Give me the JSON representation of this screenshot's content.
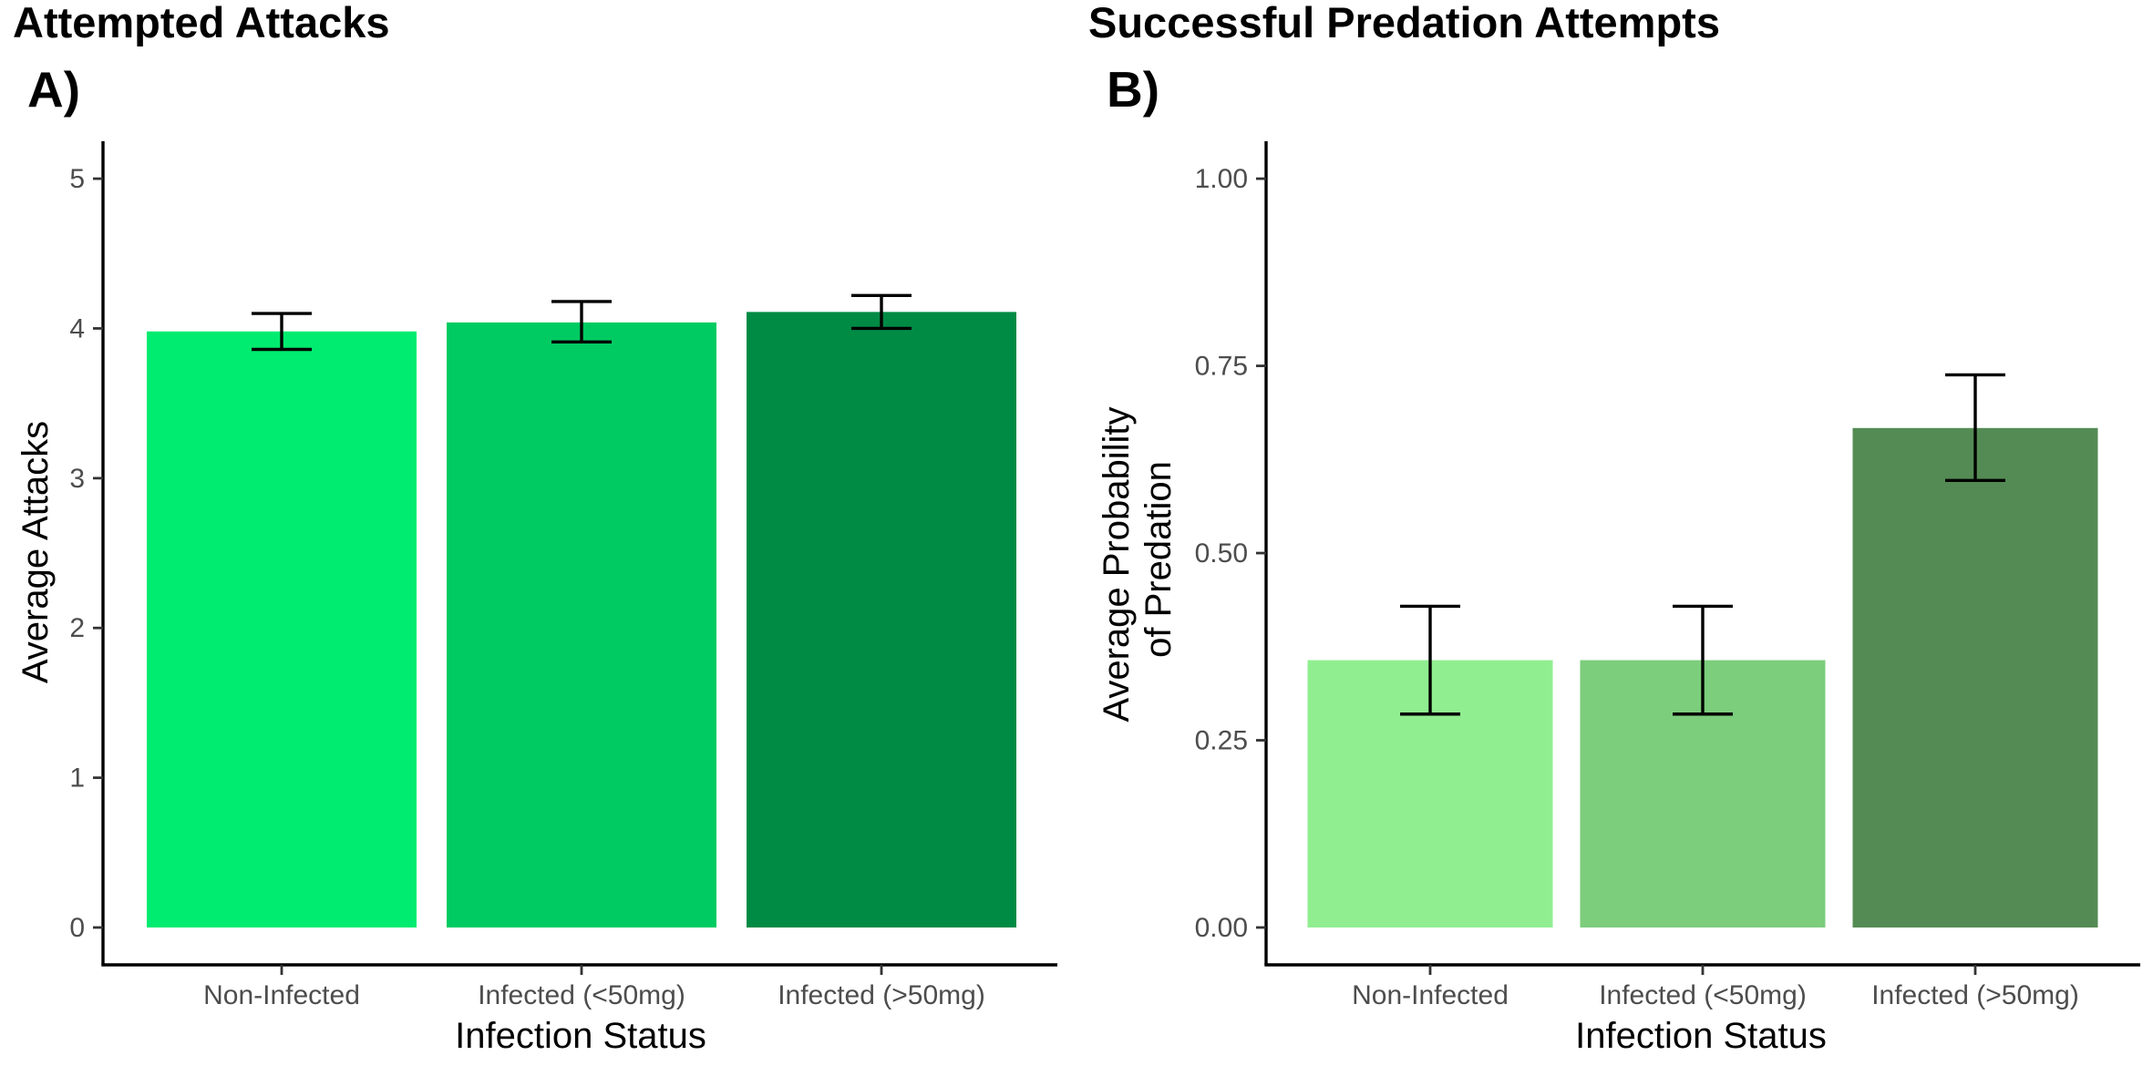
{
  "chart_data": [
    {
      "type": "bar",
      "title": "Attempted Attacks",
      "panel_label": "A)",
      "xlabel": "Infection Status",
      "ylabel": "Average Attacks",
      "ylim": [
        0,
        5.25
      ],
      "yticks": [
        0,
        1,
        2,
        3,
        4,
        5
      ],
      "ytick_labels": [
        "0",
        "1",
        "2",
        "3",
        "4",
        "5"
      ],
      "categories": [
        "Non-Infected",
        "Infected (<50mg)",
        "Infected (>50mg)"
      ],
      "values": [
        3.98,
        4.04,
        4.11
      ],
      "error_low": [
        3.86,
        3.91,
        4.0
      ],
      "error_high": [
        4.1,
        4.18,
        4.22
      ],
      "colors": [
        "#00EC70",
        "#00CB62",
        "#008B45"
      ],
      "grid": false,
      "legend": "none"
    },
    {
      "type": "bar",
      "title": "Successful Predation Attempts",
      "panel_label": "B)",
      "xlabel": "Infection Status",
      "ylabel": [
        "Average Probability",
        "of Predation"
      ],
      "ylim": [
        0,
        1.05
      ],
      "yticks": [
        0,
        0.25,
        0.5,
        0.75,
        1.0
      ],
      "ytick_labels": [
        "0.00",
        "0.25",
        "0.50",
        "0.75",
        "1.00"
      ],
      "categories": [
        "Non-Infected",
        "Infected (<50mg)",
        "Infected (>50mg)"
      ],
      "values": [
        0.357,
        0.357,
        0.667
      ],
      "error_low": [
        0.285,
        0.285,
        0.597
      ],
      "error_high": [
        0.429,
        0.429,
        0.738
      ],
      "colors": [
        "#90EE90",
        "#7CCD7C",
        "#548B54"
      ],
      "grid": false,
      "legend": "none"
    }
  ]
}
